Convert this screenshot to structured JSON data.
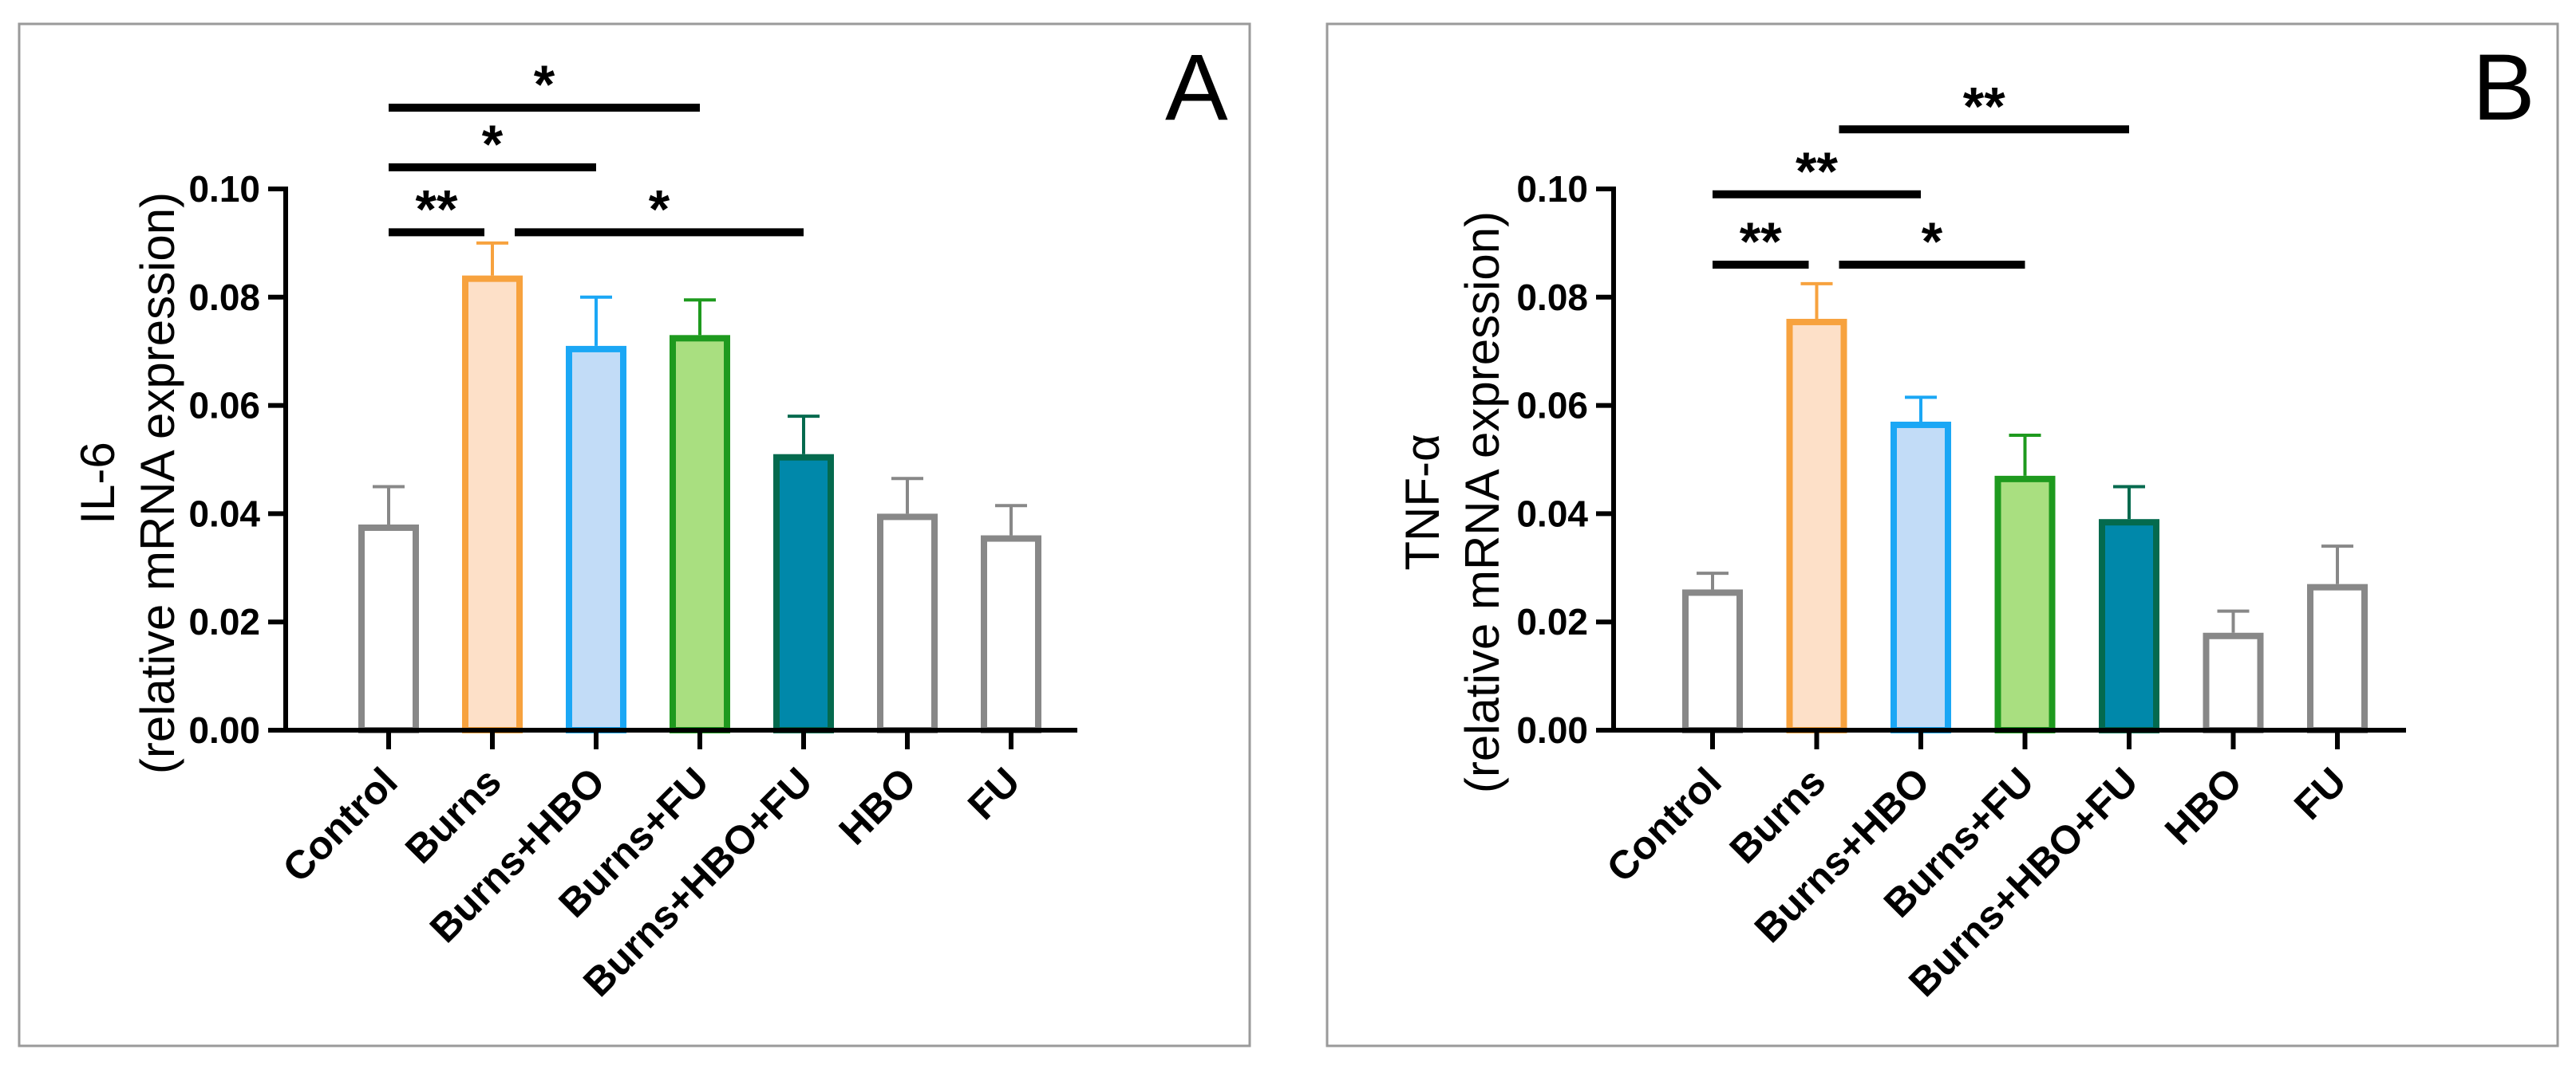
{
  "chart_data": [
    {
      "type": "bar",
      "panel_label": "A",
      "ylabel_line1": "IL-6",
      "ylabel_line2": "(relative mRNA expression)",
      "categories": [
        "Control",
        "Burns",
        "Burns+HBO",
        "Burns+FU",
        "Burns+HBO+FU",
        "HBO",
        "FU"
      ],
      "values": [
        0.038,
        0.084,
        0.071,
        0.073,
        0.051,
        0.04,
        0.036
      ],
      "errors": [
        0.007,
        0.006,
        0.009,
        0.0065,
        0.007,
        0.0065,
        0.0055
      ],
      "ylim": [
        0,
        0.1
      ],
      "yticks": [
        "0.00",
        "0.02",
        "0.04",
        "0.06",
        "0.08",
        "0.10"
      ],
      "colors": {
        "fills": [
          "#ffffff",
          "#fde0c8",
          "#c2dcf7",
          "#a9df80",
          "#0088aa",
          "#ffffff",
          "#ffffff"
        ],
        "strokes": [
          "#888888",
          "#f7a23e",
          "#1ba7f5",
          "#1e9a1e",
          "#046a4e",
          "#888888",
          "#888888"
        ]
      },
      "significance": [
        {
          "from": 0,
          "to": 1,
          "label": "**",
          "value": 0.092
        },
        {
          "from": 1,
          "to": 4,
          "label": "*",
          "value": 0.092
        },
        {
          "from": 0,
          "to": 2,
          "label": "*",
          "value": 0.104
        },
        {
          "from": 0,
          "to": 3,
          "label": "*",
          "value": 0.115
        }
      ]
    },
    {
      "type": "bar",
      "panel_label": "B",
      "ylabel_line1": "TNF-α",
      "ylabel_line2": "(relative mRNA expression)",
      "categories": [
        "Control",
        "Burns",
        "Burns+HBO",
        "Burns+FU",
        "Burns+HBO+FU",
        "HBO",
        "FU"
      ],
      "values": [
        0.026,
        0.076,
        0.057,
        0.047,
        0.039,
        0.018,
        0.027
      ],
      "errors": [
        0.003,
        0.0065,
        0.0045,
        0.0075,
        0.006,
        0.004,
        0.007
      ],
      "ylim": [
        0,
        0.1
      ],
      "yticks": [
        "0.00",
        "0.02",
        "0.04",
        "0.06",
        "0.08",
        "0.10"
      ],
      "colors": {
        "fills": [
          "#ffffff",
          "#fde0c8",
          "#c2dcf7",
          "#a9df80",
          "#0088aa",
          "#ffffff",
          "#ffffff"
        ],
        "strokes": [
          "#888888",
          "#f7a23e",
          "#1ba7f5",
          "#1e9a1e",
          "#046a4e",
          "#888888",
          "#888888"
        ]
      },
      "significance": [
        {
          "from": 0,
          "to": 1,
          "label": "**",
          "value": 0.086
        },
        {
          "from": 1,
          "to": 3,
          "label": "*",
          "value": 0.086
        },
        {
          "from": 0,
          "to": 2,
          "label": "**",
          "value": 0.099
        },
        {
          "from": 1,
          "to": 4,
          "label": "**",
          "value": 0.111
        }
      ]
    }
  ]
}
